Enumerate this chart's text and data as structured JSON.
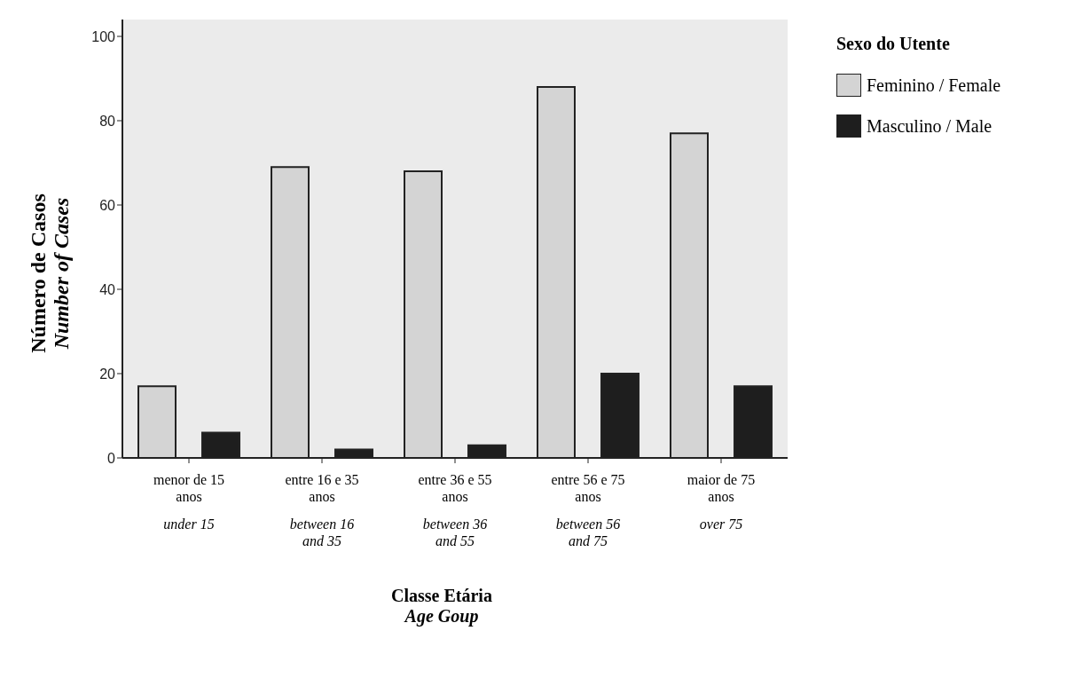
{
  "chart_data": {
    "type": "bar",
    "xlabel": "Classe Etária\nAge Goup",
    "ylabel": "Número de Casos\nNumber of Cases",
    "legend_title": "Sexo do Utente",
    "categories": [
      "menor de 15\nanos\n\nunder 15",
      "entre 16 e 35\nanos\n\nbetween 16\nand 35",
      "entre 36 e 55\nanos\n\nbetween 36\nand 55",
      "entre 56 e 75\nanos\n\nbetween 56\nand 75",
      "maior de 75\nanos\n\nover 75"
    ],
    "series": [
      {
        "name": "Feminino / Female",
        "color": "#d4d4d4",
        "values": [
          17,
          69,
          68,
          88,
          77
        ]
      },
      {
        "name": "Masculino / Male",
        "color": "#1e1e1e",
        "values": [
          6,
          2,
          3,
          20,
          17
        ]
      }
    ],
    "ylim": [
      0,
      104
    ],
    "yticks": [
      0,
      20,
      40,
      60,
      80,
      100
    ],
    "grid": false,
    "legend": "top right"
  }
}
